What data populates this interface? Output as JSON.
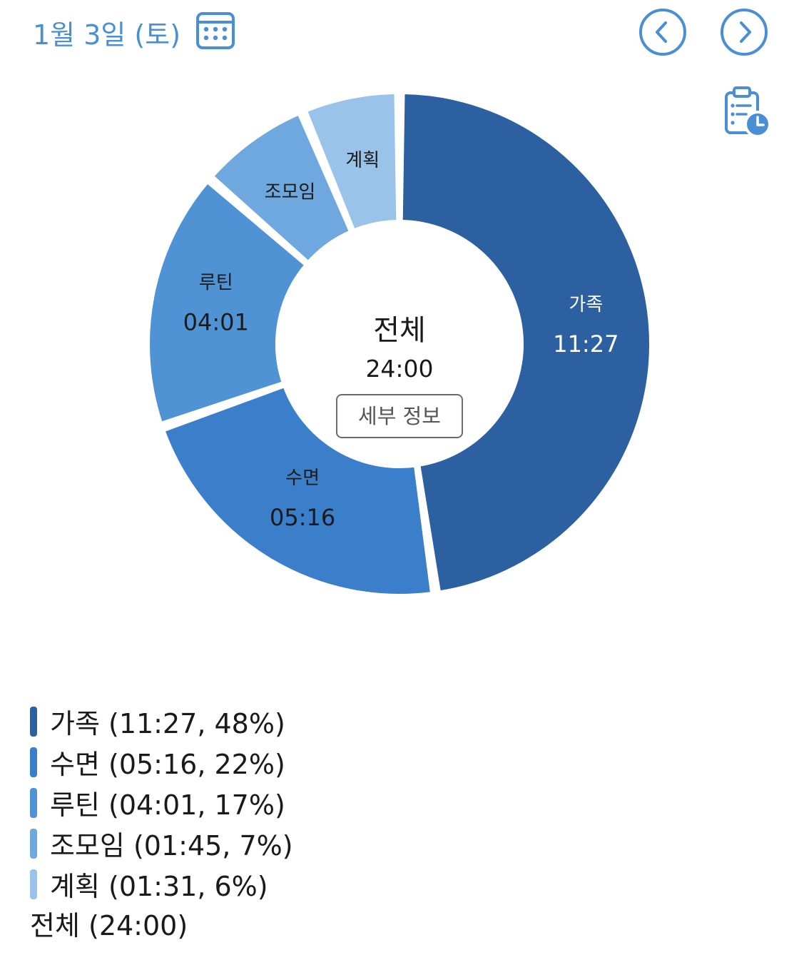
{
  "header": {
    "date": "1월 3일 (토)",
    "calendar_icon": "calendar-icon",
    "prev_icon": "chevron-left-circle-icon",
    "next_icon": "chevron-right-circle-icon",
    "clipboard_icon": "clipboard-clock-icon",
    "accent_color": "#4a8fd3"
  },
  "center": {
    "title": "전체",
    "total": "24:00",
    "detail_button": "세부 정보"
  },
  "chart_data": {
    "type": "pie",
    "donut": true,
    "title": "",
    "unit": "hh:mm",
    "slices": [
      {
        "name": "가족",
        "time": "11:27",
        "minutes": 687,
        "percent": "48%",
        "color": "#2d60a0"
      },
      {
        "name": "수면",
        "time": "05:16",
        "minutes": 316,
        "percent": "22%",
        "color": "#3b7ec9"
      },
      {
        "name": "루틴",
        "time": "04:01",
        "minutes": 241,
        "percent": "17%",
        "color": "#5093d5"
      },
      {
        "name": "조모임",
        "time": "01:45",
        "minutes": 105,
        "percent": "7%",
        "color": "#6fa8df"
      },
      {
        "name": "계획",
        "time": "01:31",
        "minutes": 91,
        "percent": "6%",
        "color": "#9ac3ea"
      }
    ],
    "legend_placement": "bottom-left"
  },
  "legend": {
    "items": [
      {
        "text": "가족 (11:27, 48%)",
        "color": "#2d60a0"
      },
      {
        "text": "수면 (05:16, 22%)",
        "color": "#3b7ec9"
      },
      {
        "text": "루틴 (04:01, 17%)",
        "color": "#5093d5"
      },
      {
        "text": "조모임 (01:45, 7%)",
        "color": "#6fa8df"
      },
      {
        "text": "계획 (01:31, 6%)",
        "color": "#9ac3ea"
      }
    ],
    "total": "전체 (24:00)"
  }
}
